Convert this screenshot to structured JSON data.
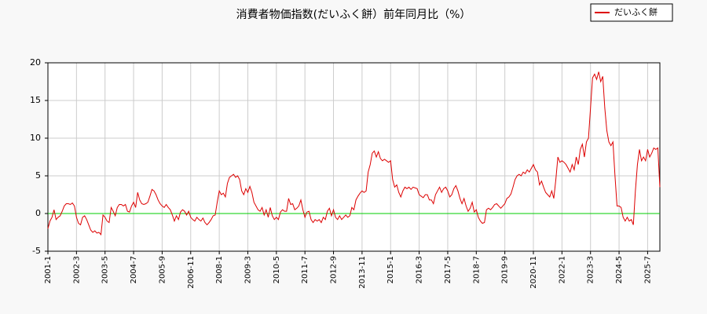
{
  "chart_data": {
    "type": "line",
    "title": "消費者物価指数(だいふく餅）前年同月比（%）",
    "x": [
      "2001-1",
      "2001-2",
      "2001-3",
      "2001-4",
      "2001-5",
      "2001-6",
      "2001-7",
      "2001-8",
      "2001-9",
      "2001-10",
      "2001-11",
      "2001-12",
      "2002-1",
      "2002-2",
      "2002-3",
      "2002-4",
      "2002-5",
      "2002-6",
      "2002-7",
      "2002-8",
      "2002-9",
      "2002-10",
      "2002-11",
      "2002-12",
      "2003-1",
      "2003-2",
      "2003-3",
      "2003-4",
      "2003-5",
      "2003-6",
      "2003-7",
      "2003-8",
      "2003-9",
      "2003-10",
      "2003-11",
      "2003-12",
      "2004-1",
      "2004-2",
      "2004-3",
      "2004-4",
      "2004-5",
      "2004-6",
      "2004-7",
      "2004-8",
      "2004-9",
      "2004-10",
      "2004-11",
      "2004-12",
      "2005-1",
      "2005-2",
      "2005-3",
      "2005-4",
      "2005-5",
      "2005-6",
      "2005-7",
      "2005-8",
      "2005-9",
      "2005-10",
      "2005-11",
      "2005-12",
      "2006-1",
      "2006-2",
      "2006-3",
      "2006-4",
      "2006-5",
      "2006-6",
      "2006-7",
      "2006-8",
      "2006-9",
      "2006-10",
      "2006-11",
      "2006-12",
      "2007-1",
      "2007-2",
      "2007-3",
      "2007-4",
      "2007-5",
      "2007-6",
      "2007-7",
      "2007-8",
      "2007-9",
      "2007-10",
      "2007-11",
      "2007-12",
      "2008-1",
      "2008-2",
      "2008-3",
      "2008-4",
      "2008-5",
      "2008-6",
      "2008-7",
      "2008-8",
      "2008-9",
      "2008-10",
      "2008-11",
      "2008-12",
      "2009-1",
      "2009-2",
      "2009-3",
      "2009-4",
      "2009-5",
      "2009-6",
      "2009-7",
      "2009-8",
      "2009-9",
      "2009-10",
      "2009-11",
      "2009-12",
      "2010-1",
      "2010-2",
      "2010-3",
      "2010-4",
      "2010-5",
      "2010-6",
      "2010-7",
      "2010-8",
      "2010-9",
      "2010-10",
      "2010-11",
      "2010-12",
      "2011-1",
      "2011-2",
      "2011-3",
      "2011-4",
      "2011-5",
      "2011-6",
      "2011-7",
      "2011-8",
      "2011-9",
      "2011-10",
      "2011-11",
      "2011-12",
      "2012-1",
      "2012-2",
      "2012-3",
      "2012-4",
      "2012-5",
      "2012-6",
      "2012-7",
      "2012-8",
      "2012-9",
      "2012-10",
      "2012-11",
      "2012-12",
      "2013-1",
      "2013-2",
      "2013-3",
      "2013-4",
      "2013-5",
      "2013-6",
      "2013-7",
      "2013-8",
      "2013-9",
      "2013-10",
      "2013-11",
      "2013-12",
      "2014-1",
      "2014-2",
      "2014-3",
      "2014-4",
      "2014-5",
      "2014-6",
      "2014-7",
      "2014-8",
      "2014-9",
      "2014-10",
      "2014-11",
      "2014-12",
      "2015-1",
      "2015-2",
      "2015-3",
      "2015-4",
      "2015-5",
      "2015-6",
      "2015-7",
      "2015-8",
      "2015-9",
      "2015-10",
      "2015-11",
      "2015-12",
      "2016-1",
      "2016-2",
      "2016-3",
      "2016-4",
      "2016-5",
      "2016-6",
      "2016-7",
      "2016-8",
      "2016-9",
      "2016-10",
      "2016-11",
      "2016-12",
      "2017-1",
      "2017-2",
      "2017-3",
      "2017-4",
      "2017-5",
      "2017-6",
      "2017-7",
      "2017-8",
      "2017-9",
      "2017-10",
      "2017-11",
      "2017-12",
      "2018-1",
      "2018-2",
      "2018-3",
      "2018-4",
      "2018-5",
      "2018-6",
      "2018-7",
      "2018-8",
      "2018-9",
      "2018-10",
      "2018-11",
      "2018-12",
      "2019-1",
      "2019-2",
      "2019-3",
      "2019-4",
      "2019-5",
      "2019-6",
      "2019-7",
      "2019-8",
      "2019-9",
      "2019-10",
      "2019-11",
      "2019-12",
      "2020-1",
      "2020-2",
      "2020-3",
      "2020-4",
      "2020-5",
      "2020-6",
      "2020-7",
      "2020-8",
      "2020-9",
      "2020-10",
      "2020-11",
      "2020-12",
      "2021-1",
      "2021-2",
      "2021-3",
      "2021-4",
      "2021-5",
      "2021-6",
      "2021-7",
      "2021-8",
      "2021-9",
      "2021-10",
      "2021-11",
      "2021-12",
      "2022-1",
      "2022-2",
      "2022-3",
      "2022-4",
      "2022-5",
      "2022-6",
      "2022-7",
      "2022-8",
      "2022-9",
      "2022-10",
      "2022-11",
      "2022-12",
      "2023-1",
      "2023-2",
      "2023-3",
      "2023-4",
      "2023-5",
      "2023-6",
      "2023-7",
      "2023-8",
      "2023-9",
      "2023-10",
      "2023-11",
      "2023-12",
      "2024-1",
      "2024-2",
      "2024-3",
      "2024-4",
      "2024-5",
      "2024-6",
      "2024-7",
      "2024-8",
      "2024-9",
      "2024-10",
      "2024-11",
      "2024-12",
      "2025-1",
      "2025-2",
      "2025-3",
      "2025-4",
      "2025-5",
      "2025-6",
      "2025-7",
      "2025-8",
      "2025-9",
      "2025-10",
      "2025-11",
      "2025-12",
      "2026-1"
    ],
    "series": [
      {
        "name": "だいふく餅",
        "color": "#dd0000",
        "values": [
          -2.0,
          -1.0,
          -0.5,
          0.5,
          -0.8,
          -0.5,
          -0.3,
          0.3,
          1.0,
          1.3,
          1.3,
          1.2,
          1.4,
          1.0,
          -0.5,
          -1.3,
          -1.5,
          -0.5,
          -0.3,
          -0.8,
          -1.5,
          -2.2,
          -2.5,
          -2.3,
          -2.6,
          -2.5,
          -2.8,
          -0.2,
          -0.5,
          -1.0,
          -1.2,
          0.8,
          0.3,
          -0.3,
          0.8,
          1.2,
          1.2,
          1.0,
          1.2,
          0.3,
          0.2,
          1.0,
          1.5,
          0.8,
          2.8,
          1.8,
          1.3,
          1.2,
          1.3,
          1.5,
          2.3,
          3.2,
          3.0,
          2.5,
          1.8,
          1.3,
          1.0,
          0.8,
          1.2,
          0.8,
          0.5,
          -0.2,
          -1.0,
          -0.3,
          -0.8,
          0.2,
          0.5,
          0.3,
          -0.2,
          0.3,
          -0.5,
          -0.8,
          -1.0,
          -0.5,
          -0.8,
          -1.0,
          -0.6,
          -1.2,
          -1.5,
          -1.2,
          -0.8,
          -0.3,
          -0.2,
          1.5,
          3.0,
          2.5,
          2.7,
          2.2,
          4.0,
          4.8,
          5.0,
          5.2,
          4.8,
          5.0,
          4.5,
          3.0,
          2.5,
          3.3,
          2.8,
          3.6,
          2.8,
          1.5,
          1.0,
          0.5,
          0.3,
          0.8,
          -0.2,
          0.5,
          -0.5,
          0.8,
          -0.3,
          -0.8,
          -0.5,
          -0.8,
          0.2,
          0.5,
          0.3,
          0.3,
          2.0,
          1.2,
          1.3,
          0.5,
          0.7,
          1.0,
          1.8,
          0.5,
          -0.5,
          0.2,
          0.3,
          -0.8,
          -1.2,
          -0.8,
          -1.0,
          -0.8,
          -1.2,
          -0.5,
          -0.8,
          0.3,
          0.7,
          -0.3,
          0.5,
          -0.5,
          -0.8,
          -0.3,
          -0.8,
          -0.5,
          -0.2,
          -0.5,
          -0.3,
          0.8,
          0.5,
          1.8,
          2.3,
          2.7,
          3.0,
          2.8,
          3.0,
          5.5,
          6.5,
          8.0,
          8.3,
          7.5,
          8.2,
          7.3,
          7.0,
          7.2,
          7.0,
          6.8,
          7.0,
          4.5,
          3.5,
          3.8,
          2.8,
          2.2,
          3.0,
          3.5,
          3.3,
          3.5,
          3.2,
          3.5,
          3.4,
          3.3,
          2.5,
          2.3,
          2.1,
          2.5,
          2.5,
          1.8,
          1.8,
          1.3,
          2.5,
          3.0,
          3.5,
          2.8,
          3.3,
          3.5,
          3.0,
          2.2,
          2.5,
          3.3,
          3.7,
          3.0,
          2.0,
          1.3,
          2.0,
          1.0,
          0.3,
          0.7,
          1.5,
          0.2,
          0.5,
          -0.5,
          -1.0,
          -1.3,
          -1.2,
          0.5,
          0.7,
          0.5,
          0.8,
          1.2,
          1.3,
          1.0,
          0.7,
          1.0,
          1.3,
          2.0,
          2.2,
          2.6,
          3.5,
          4.5,
          5.0,
          5.2,
          5.0,
          5.5,
          5.3,
          5.8,
          5.5,
          6.0,
          6.5,
          5.8,
          5.5,
          3.8,
          4.3,
          3.5,
          2.8,
          2.5,
          2.2,
          3.0,
          2.0,
          4.5,
          7.5,
          6.8,
          7.0,
          6.8,
          6.5,
          6.0,
          5.5,
          6.5,
          5.8,
          7.5,
          6.5,
          8.5,
          9.2,
          7.5,
          9.5,
          10.0,
          14.0,
          18.0,
          18.5,
          17.8,
          18.8,
          17.5,
          18.2,
          14.0,
          11.0,
          9.5,
          9.0,
          9.5,
          5.0,
          1.0,
          1.0,
          0.8,
          -0.5,
          -1.0,
          -0.5,
          -1.0,
          -0.8,
          -1.5,
          3.0,
          6.5,
          8.5,
          7.0,
          7.5,
          7.0,
          8.5,
          7.5,
          8.0,
          8.7,
          8.5,
          8.7,
          3.5
        ]
      }
    ],
    "ylim": [
      -5,
      20
    ],
    "yticks": [
      -5,
      0,
      5,
      10,
      15,
      20
    ],
    "xticks": [
      "2001-1",
      "2002-3",
      "2003-5",
      "2004-7",
      "2005-9",
      "2006-11",
      "2008-1",
      "2009-3",
      "2010-5",
      "2011-7",
      "2012-9",
      "2013-11",
      "2015-1",
      "2016-3",
      "2017-5",
      "2018-7",
      "2019-9",
      "2020-11",
      "2022-1",
      "2023-3",
      "2024-5",
      "2025-7"
    ],
    "grid": true,
    "legend": "top-right",
    "reference_line": {
      "value": 0,
      "color": "#00cc00"
    }
  }
}
